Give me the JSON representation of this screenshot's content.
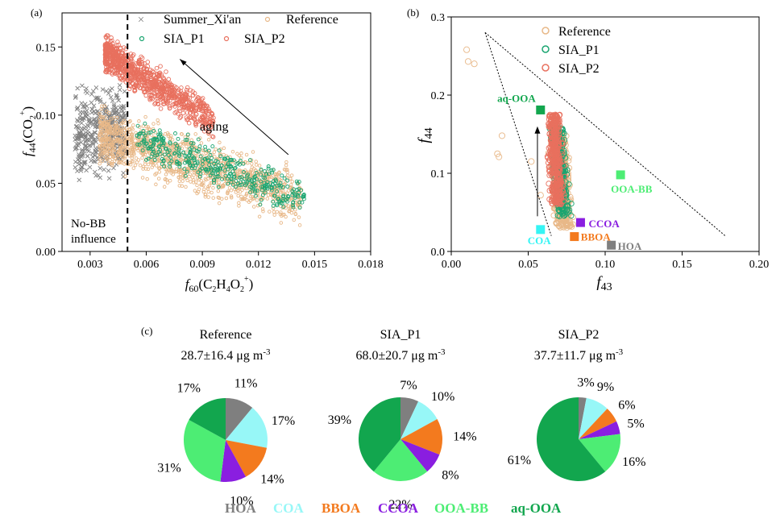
{
  "chart_data": [
    {
      "panel": "(a)",
      "type": "scatter",
      "xlabel": {
        "main": "f",
        "sub": "60",
        "paren": "(C",
        "s1": "2",
        "mid": "H",
        "s2": "4",
        "mid2": "O",
        "s3": "2",
        "sup": "+",
        "end": ")"
      },
      "ylabel": {
        "main": "f",
        "sub": "44",
        "paren": "(CO",
        "s1": "2",
        "sup": "+",
        "end": ")"
      },
      "xlim": [
        0.0015,
        0.018
      ],
      "ylim": [
        0.0,
        0.175
      ],
      "xticks": [
        "0.003",
        "0.006",
        "0.009",
        "0.012",
        "0.015",
        "0.018"
      ],
      "yticks": [
        "0.00",
        "0.05",
        "0.10",
        "0.15"
      ],
      "xtick_values": [
        0.003,
        0.006,
        0.009,
        0.012,
        0.015,
        0.018
      ],
      "ytick_values": [
        0.0,
        0.05,
        0.1,
        0.15
      ],
      "threshold_x": 0.005,
      "annotations": {
        "aging": "aging",
        "nobb1": "No-BB",
        "nobb2": "influence"
      },
      "arrow": {
        "from": [
          0.0136,
          0.071
        ],
        "to": [
          0.0078,
          0.141
        ]
      },
      "series": [
        {
          "name": "Summer_Xi'an",
          "marker": "x",
          "color": "#808080",
          "x_range": [
            0.0022,
            0.0048
          ],
          "y_range": [
            0.04,
            0.135
          ],
          "n": 420
        },
        {
          "name": "Reference",
          "marker": "o",
          "color": "#e8b888",
          "x_range": [
            0.0035,
            0.0145
          ],
          "y_range": [
            0.02,
            0.105
          ],
          "n": 1300
        },
        {
          "name": "SIA_P1",
          "marker": "o",
          "color": "#1aa570",
          "x_range": [
            0.0055,
            0.0145
          ],
          "y_range": [
            0.035,
            0.095
          ],
          "n": 400
        },
        {
          "name": "SIA_P2",
          "marker": "o",
          "color": "#e8705e",
          "x_range": [
            0.0038,
            0.0095
          ],
          "y_range": [
            0.065,
            0.158
          ],
          "n": 900
        }
      ]
    },
    {
      "panel": "(b)",
      "type": "scatter",
      "xlabel": {
        "main": "f",
        "sub": "43"
      },
      "ylabel": {
        "main": "f",
        "sub": "44"
      },
      "xlim": [
        0.0,
        0.2
      ],
      "ylim": [
        0.0,
        0.3
      ],
      "xticks": [
        "0.00",
        "0.05",
        "0.10",
        "0.15",
        "0.20"
      ],
      "yticks": [
        "0.0",
        "0.1",
        "0.2",
        "0.3"
      ],
      "xtick_values": [
        0.0,
        0.05,
        0.1,
        0.15,
        0.2
      ],
      "ytick_values": [
        0.0,
        0.1,
        0.2,
        0.3
      ],
      "triangle": {
        "apex": [
          0.022,
          0.28
        ],
        "left_end": [
          0.065,
          0.02
        ],
        "right_end": [
          0.178,
          0.02
        ]
      },
      "arrow": {
        "from": [
          0.056,
          0.045
        ],
        "to": [
          0.056,
          0.16
        ]
      },
      "series": [
        {
          "name": "Reference",
          "marker": "o",
          "color": "#e8b888",
          "extra_points": [
            [
              0.01,
              0.258
            ],
            [
              0.011,
              0.243
            ],
            [
              0.015,
              0.24
            ],
            [
              0.033,
              0.148
            ],
            [
              0.03,
              0.125
            ],
            [
              0.031,
              0.121
            ],
            [
              0.052,
              0.115
            ],
            [
              0.058,
              0.072
            ]
          ]
        },
        {
          "name": "SIA_P1",
          "marker": "o",
          "color": "#1aa570"
        },
        {
          "name": "SIA_P2",
          "marker": "o",
          "color": "#e8705e"
        }
      ],
      "factors": [
        {
          "name": "aq-OOA",
          "x": 0.058,
          "y": 0.181,
          "color": "#12a64e"
        },
        {
          "name": "OOA-BB",
          "x": 0.11,
          "y": 0.098,
          "color": "#4ded74"
        },
        {
          "name": "CCOA",
          "x": 0.084,
          "y": 0.037,
          "color": "#8a1ee0"
        },
        {
          "name": "BBOA",
          "x": 0.08,
          "y": 0.019,
          "color": "#f37a1e"
        },
        {
          "name": "COA",
          "x": 0.058,
          "y": 0.028,
          "color": "#35f4f4"
        },
        {
          "name": "HOA",
          "x": 0.104,
          "y": 0.008,
          "color": "#7f7f7f"
        }
      ]
    },
    {
      "panel": "(c)",
      "type": "pie",
      "categories": [
        "HOA",
        "COA",
        "BBOA",
        "CCOA",
        "OOA-BB",
        "aq-OOA"
      ],
      "colors": [
        "#7f7f7f",
        "#97f7f7",
        "#f37a1e",
        "#8a1ee0",
        "#4ded74",
        "#12a64e"
      ],
      "pies": [
        {
          "title": "Reference",
          "mass_value": "28.7±16.4 μg m",
          "mass_sup": "-3",
          "values": [
            11,
            17,
            14,
            10,
            31,
            17
          ],
          "labels": [
            "11%",
            "17%",
            "14%",
            "10%",
            "31%",
            "17%"
          ]
        },
        {
          "title": "SIA_P1",
          "mass_value": "68.0±20.7 μg m",
          "mass_sup": "-3",
          "values": [
            7,
            10,
            14,
            8,
            22,
            39
          ],
          "labels": [
            "7%",
            "10%",
            "14%",
            "8%",
            "22%",
            "39%"
          ]
        },
        {
          "title": "SIA_P2",
          "mass_value": "37.7±11.7 μg m",
          "mass_sup": "-3",
          "values": [
            3,
            9,
            6,
            5,
            16,
            61
          ],
          "labels": [
            "3%",
            "9%",
            "6%",
            "5%",
            "16%",
            "61%"
          ]
        }
      ]
    }
  ]
}
